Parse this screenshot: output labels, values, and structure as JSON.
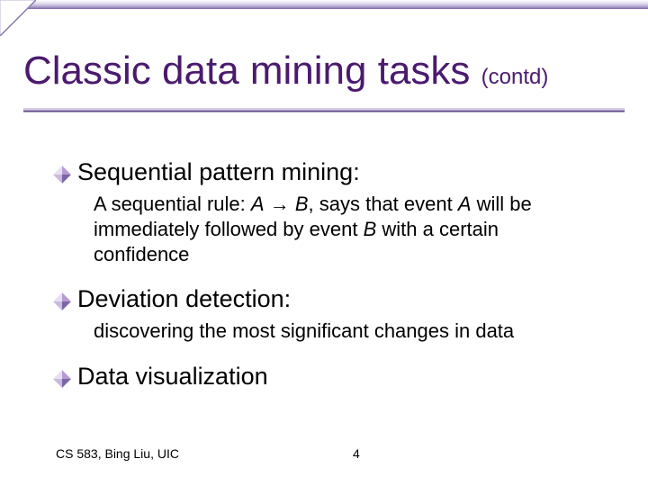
{
  "colors": {
    "title": "#4b1a6e",
    "body_text": "#000000",
    "bullet_light": "#e8def2",
    "bullet_mid": "#b79bd4",
    "bullet_dark": "#7a66a6",
    "rule_light": "#d8cde8",
    "rule_dark": "#5e4a89",
    "stripe_dark": "#7a66a6",
    "background": "#ffffff"
  },
  "title": {
    "main": "Classic data mining tasks ",
    "sub": "(contd)",
    "main_fontsize": 44,
    "sub_fontsize": 24
  },
  "bullets": [
    {
      "heading": "Sequential pattern mining:",
      "sub_html": "A sequential rule: <span class=\"italic\">A</span> <span class=\"arrow\">→</span> <span class=\"italic\">B</span>, says that event <span class=\"italic\">A</span> will be immediately followed by event <span class=\"italic\">B</span> with a certain confidence"
    },
    {
      "heading": "Deviation detection:",
      "sub_html": "discovering the most significant changes in data"
    },
    {
      "heading": "Data visualization",
      "sub_html": ""
    }
  ],
  "footer": {
    "left": "CS 583, Bing Liu, UIC",
    "page": "4",
    "fontsize": 14
  },
  "typography": {
    "heading_fontsize": 27,
    "sub_fontsize": 22,
    "font_family": "Verdana, Tahoma, sans-serif"
  }
}
